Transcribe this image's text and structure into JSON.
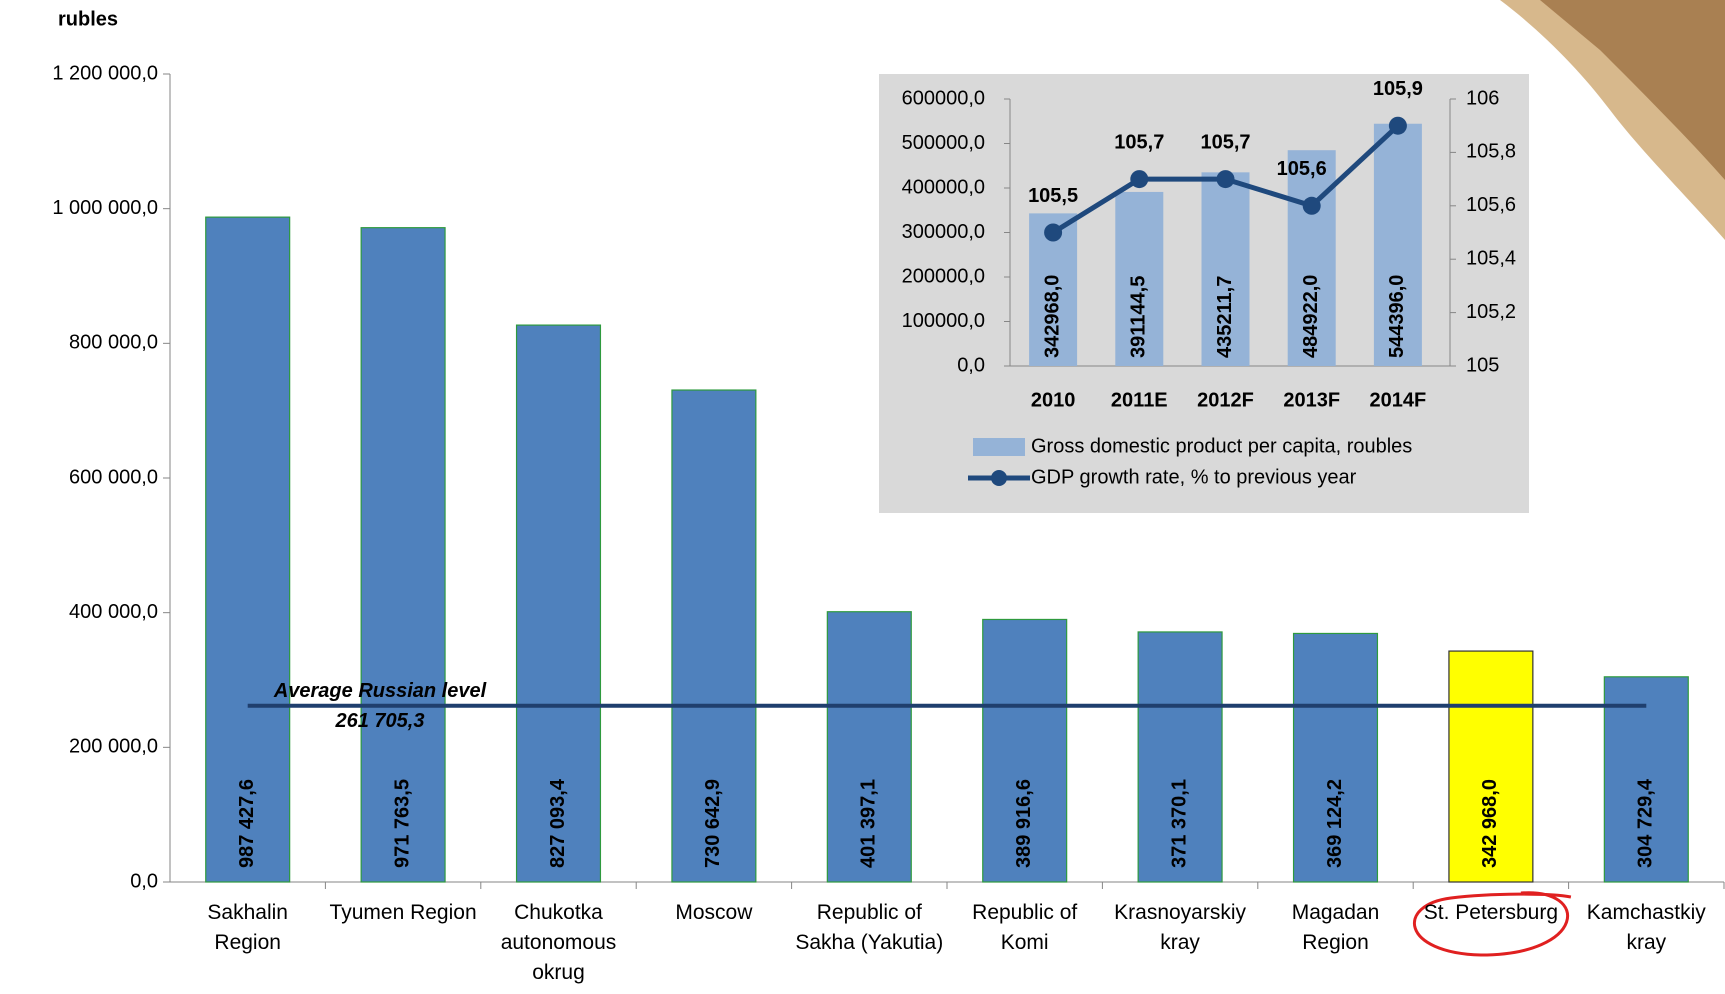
{
  "chart_data": [
    {
      "type": "bar",
      "y_axis_label": "rubles",
      "categories": [
        "Sakhalin Region",
        "Tyumen Region",
        "Chukotka autonomous okrug",
        "Moscow",
        "Republic of Sakha (Yakutia)",
        "Republic of Komi",
        "Krasnoyarskiy kray",
        "Magadan Region",
        "St. Petersburg",
        "Kamchastkiy kray"
      ],
      "values": [
        987427.6,
        971763.5,
        827093.4,
        730642.9,
        401397.1,
        389916.6,
        371370.1,
        369124.2,
        342968.0,
        304729.4
      ],
      "value_labels": [
        "987 427,6",
        "971 763,5",
        "827 093,4",
        "730 642,9",
        "401 397,1",
        "389 916,6",
        "371 370,1",
        "369 124,2",
        "342 968,0",
        "304 729,4"
      ],
      "colors": [
        "#4f81bd",
        "#4f81bd",
        "#4f81bd",
        "#4f81bd",
        "#4f81bd",
        "#4f81bd",
        "#4f81bd",
        "#4f81bd",
        "#ffff00",
        "#4f81bd"
      ],
      "ylim": [
        0,
        1200000
      ],
      "yticks": [
        {
          "value": 0,
          "label": "0,0"
        },
        {
          "value": 200000,
          "label": "200 000,0"
        },
        {
          "value": 400000,
          "label": "400 000,0"
        },
        {
          "value": 600000,
          "label": "600 000,0"
        },
        {
          "value": 800000,
          "label": "800 000,0"
        },
        {
          "value": 1000000,
          "label": "1 000 000,0"
        },
        {
          "value": 1200000,
          "label": "1 200 000,0"
        }
      ],
      "reference_line": {
        "label": "Average Russian level",
        "value": 261705.3,
        "value_label": "261 705,3",
        "color": "#1f3f6e"
      }
    },
    {
      "type": "combo",
      "background": "#d9d9d9",
      "categories": [
        "2010",
        "2011E",
        "2012F",
        "2013F",
        "2014F"
      ],
      "series": [
        {
          "name": "Gross domestic product per capita, roubles",
          "type": "bar",
          "color": "#95b3d7",
          "values": [
            342968.0,
            391144.5,
            435211.7,
            484922.0,
            544396.0
          ],
          "value_labels": [
            "342968,0",
            "391144,5",
            "435211,7",
            "484922,0",
            "544396,0"
          ]
        },
        {
          "name": "GDP growth rate, % to previous year",
          "type": "line",
          "axis": "y2",
          "color": "#1f497d",
          "values": [
            105.5,
            105.7,
            105.7,
            105.6,
            105.9
          ],
          "value_labels": [
            "105,5",
            "105,7",
            "105,7",
            "105,6",
            "105,9"
          ]
        }
      ],
      "ylim": [
        0,
        600000
      ],
      "yticks": [
        {
          "value": 0,
          "label": "0,0"
        },
        {
          "value": 100000,
          "label": "100000,0"
        },
        {
          "value": 200000,
          "label": "200000,0"
        },
        {
          "value": 300000,
          "label": "300000,0"
        },
        {
          "value": 400000,
          "label": "400000,0"
        },
        {
          "value": 500000,
          "label": "500000,0"
        },
        {
          "value": 600000,
          "label": "600000,0"
        }
      ],
      "y2lim": [
        105,
        106
      ],
      "y2ticks": [
        105,
        {
          "value": 105.2,
          "label": "105,2"
        },
        {
          "value": 105.4,
          "label": "105,4"
        },
        {
          "value": 105.6,
          "label": "105,6"
        },
        {
          "value": 105.8,
          "label": "105,8"
        },
        106
      ]
    }
  ]
}
